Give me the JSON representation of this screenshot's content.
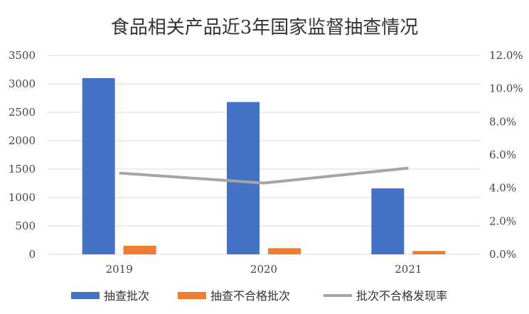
{
  "chart_data": {
    "type": "bar",
    "title": "食品相关产品近3年国家监督抽查情况",
    "categories": [
      "2019",
      "2020",
      "2021"
    ],
    "series": [
      {
        "name": "抽查批次",
        "type": "bar",
        "axis": "left",
        "color": "#4472C4",
        "values": [
          3100,
          2680,
          1160
        ]
      },
      {
        "name": "抽查不合格批次",
        "type": "bar",
        "axis": "left",
        "color": "#ED7D31",
        "values": [
          150,
          108,
          60
        ]
      },
      {
        "name": "批次不合格发现率",
        "type": "line",
        "axis": "right",
        "color": "#A5A5A5",
        "values": [
          4.9,
          4.3,
          5.2
        ]
      }
    ],
    "ylim": [
      0,
      3500
    ],
    "yticks": [
      "0",
      "500",
      "1000",
      "1500",
      "2000",
      "2500",
      "3000",
      "3500"
    ],
    "y2lim": [
      0,
      12
    ],
    "y2ticks": [
      "0.0%",
      "2.0%",
      "4.0%",
      "6.0%",
      "8.0%",
      "10.0%",
      "12.0%"
    ],
    "grid": true,
    "legend": "bottom"
  }
}
